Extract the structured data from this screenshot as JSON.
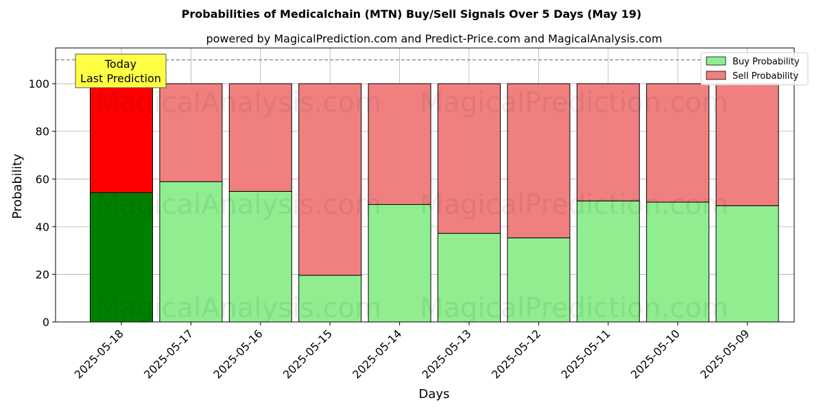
{
  "chart_data": {
    "type": "bar",
    "stacked": true,
    "title": "Probabilities of Medicalchain (MTN) Buy/Sell Signals Over 5 Days (May 19)",
    "subtitle": "powered by MagicalPrediction.com and Predict-Price.com and MagicalAnalysis.com",
    "xlabel": "Days",
    "ylabel": "Probability",
    "ylim": [
      0,
      115
    ],
    "yticks": [
      0,
      20,
      40,
      60,
      80,
      100
    ],
    "grid": true,
    "legend_position": "top-right",
    "reference_line": 110,
    "categories": [
      "2025-05-18",
      "2025-05-17",
      "2025-05-16",
      "2025-05-15",
      "2025-05-14",
      "2025-05-13",
      "2025-05-12",
      "2025-05-11",
      "2025-05-10",
      "2025-05-09"
    ],
    "series": [
      {
        "name": "Buy Probability",
        "color": "#90ee90",
        "highlight_color": "#008000",
        "values": [
          54.3,
          58.9,
          54.8,
          19.6,
          49.3,
          37.2,
          35.3,
          50.8,
          50.3,
          48.8
        ]
      },
      {
        "name": "Sell Probability",
        "color": "#f08080",
        "highlight_color": "#ff0000",
        "values": [
          45.7,
          41.1,
          45.2,
          80.4,
          50.7,
          62.8,
          64.7,
          49.2,
          49.7,
          51.2
        ]
      }
    ],
    "annotation": {
      "lines": [
        "Today",
        "Last Prediction"
      ],
      "color": "#ffff44"
    },
    "watermarks": [
      "MagicalAnalysis.com",
      "MagicalPrediction.com"
    ]
  }
}
